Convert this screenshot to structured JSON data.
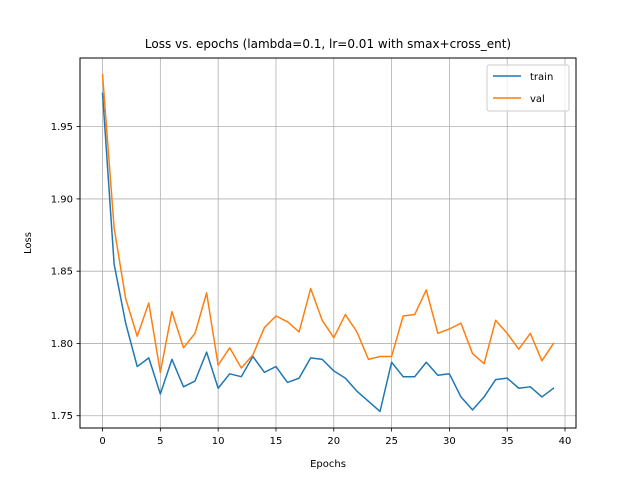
{
  "chart_data": {
    "type": "line",
    "title": "Loss vs. epochs (lambda=0.1, lr=0.01 with smax+cross_ent)",
    "xlabel": "Epochs",
    "ylabel": "Loss",
    "xlim": [
      -1.95,
      40.95
    ],
    "ylim": [
      1.7415,
      1.9975
    ],
    "xticks": [
      0,
      5,
      10,
      15,
      20,
      25,
      30,
      35,
      40
    ],
    "yticks": [
      1.75,
      1.8,
      1.85,
      1.9,
      1.95
    ],
    "ytick_labels": [
      "1.75",
      "1.80",
      "1.85",
      "1.90",
      "1.95"
    ],
    "grid": true,
    "legend": "top-right",
    "x": [
      0,
      1,
      2,
      3,
      4,
      5,
      6,
      7,
      8,
      9,
      10,
      11,
      12,
      13,
      14,
      15,
      16,
      17,
      18,
      19,
      20,
      21,
      22,
      23,
      24,
      25,
      26,
      27,
      28,
      29,
      30,
      31,
      32,
      33,
      34,
      35,
      36,
      37,
      38,
      39
    ],
    "series": [
      {
        "name": "train",
        "color": "#1f77b4",
        "values": [
          1.973,
          1.855,
          1.814,
          1.784,
          1.79,
          1.765,
          1.789,
          1.77,
          1.774,
          1.794,
          1.769,
          1.779,
          1.777,
          1.791,
          1.78,
          1.784,
          1.773,
          1.776,
          1.79,
          1.789,
          1.781,
          1.776,
          1.767,
          1.76,
          1.753,
          1.787,
          1.777,
          1.777,
          1.787,
          1.778,
          1.779,
          1.763,
          1.754,
          1.763,
          1.775,
          1.776,
          1.769,
          1.77,
          1.763,
          1.769
        ]
      },
      {
        "name": "val",
        "color": "#ff7f0e",
        "values": [
          1.986,
          1.88,
          1.831,
          1.805,
          1.828,
          1.78,
          1.822,
          1.797,
          1.807,
          1.835,
          1.785,
          1.797,
          1.783,
          1.792,
          1.811,
          1.819,
          1.815,
          1.808,
          1.838,
          1.816,
          1.804,
          1.82,
          1.808,
          1.789,
          1.791,
          1.791,
          1.819,
          1.82,
          1.837,
          1.807,
          1.81,
          1.814,
          1.793,
          1.786,
          1.816,
          1.807,
          1.796,
          1.807,
          1.788,
          1.8
        ]
      }
    ]
  }
}
